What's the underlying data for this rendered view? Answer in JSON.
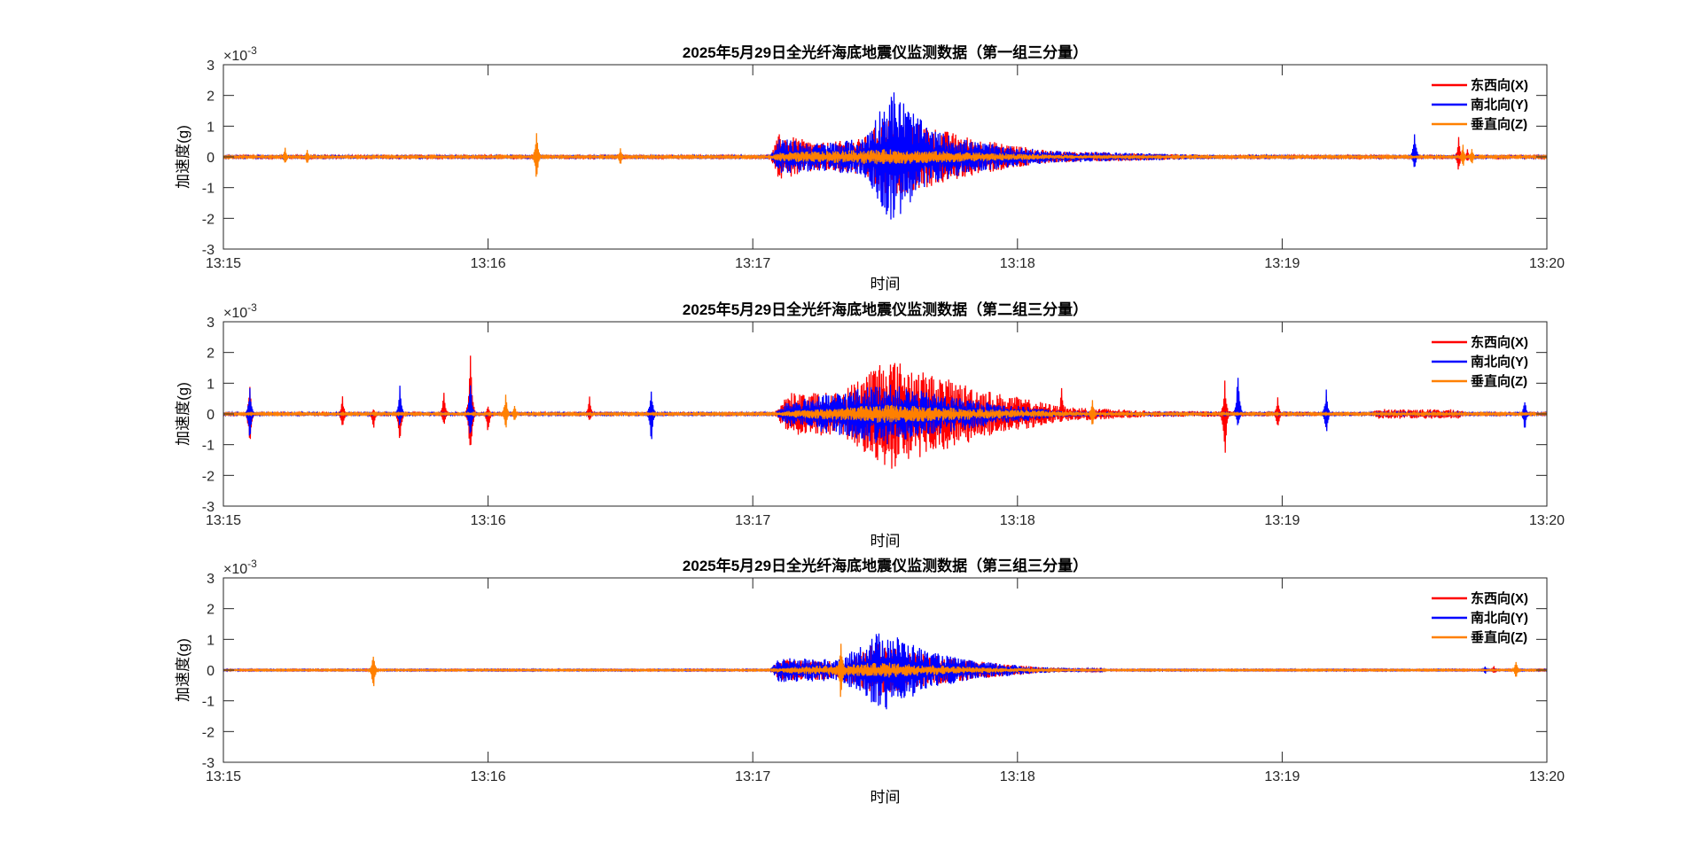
{
  "chart_data": [
    {
      "type": "line",
      "title": "2025年5月29日全光纤海底地震仪监测数据（第一组三分量）",
      "xlabel": "时间",
      "ylabel": "加速度(g)",
      "y_exponent": "-3",
      "y_exponent_base": "×10",
      "xlim": [
        "13:15:00",
        "13:20:00"
      ],
      "ylim": [
        -3,
        3
      ],
      "x_ticks": [
        "13:15",
        "13:16",
        "13:17",
        "13:18",
        "13:19",
        "13:20"
      ],
      "y_ticks": [
        "-3",
        "-2",
        "-1",
        "0",
        "1",
        "2",
        "3"
      ],
      "legend_position": "top-right",
      "grid": false,
      "series": [
        {
          "name": "东西向(X)",
          "color": "#ff0000",
          "noise": 0.04,
          "envelope": [
            [
              "13:17:04",
              0.05
            ],
            [
              "13:17:06",
              0.75
            ],
            [
              "13:17:15",
              0.45
            ],
            [
              "13:17:25",
              0.6
            ],
            [
              "13:17:30",
              1.3
            ],
            [
              "13:17:40",
              1.0
            ],
            [
              "13:17:50",
              0.6
            ],
            [
              "13:18:07",
              0.2
            ],
            [
              "13:18:40",
              0.07
            ],
            [
              "13:18:50",
              0.04
            ]
          ],
          "spikes": [
            [
              "13:15:19",
              0.1,
              -0.25
            ],
            [
              "13:19:40",
              0.65,
              -0.55
            ],
            [
              "13:19:42",
              0.25,
              -0.2
            ]
          ]
        },
        {
          "name": "南北向(Y)",
          "color": "#0000ff",
          "noise": 0.05,
          "envelope": [
            [
              "13:17:04",
              0.05
            ],
            [
              "13:17:06",
              0.6
            ],
            [
              "13:17:15",
              0.45
            ],
            [
              "13:17:25",
              0.6
            ],
            [
              "13:17:30",
              1.9
            ],
            [
              "13:17:32",
              2.2
            ],
            [
              "13:17:40",
              0.9
            ],
            [
              "13:17:50",
              0.5
            ],
            [
              "13:18:07",
              0.2
            ],
            [
              "13:18:40",
              0.08
            ],
            [
              "13:18:50",
              0.05
            ]
          ],
          "spikes": [
            [
              "13:19:30",
              0.95,
              -0.45
            ]
          ]
        },
        {
          "name": "垂直向(Z)",
          "color": "#ff8000",
          "noise": 0.03,
          "envelope": [
            [
              "13:17:04",
              0.03
            ],
            [
              "13:17:06",
              0.15
            ],
            [
              "13:17:30",
              0.25
            ],
            [
              "13:17:50",
              0.15
            ],
            [
              "13:18:10",
              0.06
            ],
            [
              "13:18:30",
              0.03
            ]
          ],
          "spikes": [
            [
              "13:15:14",
              0.3,
              -0.3
            ],
            [
              "13:15:19",
              0.25,
              -0.3
            ],
            [
              "13:16:11",
              0.9,
              -0.9
            ],
            [
              "13:16:30",
              0.3,
              -0.3
            ],
            [
              "13:19:41",
              0.4,
              -0.4
            ],
            [
              "13:19:43",
              0.3,
              -0.3
            ]
          ]
        }
      ]
    },
    {
      "type": "line",
      "title": "2025年5月29日全光纤海底地震仪监测数据（第二组三分量）",
      "xlabel": "时间",
      "ylabel": "加速度(g)",
      "y_exponent": "-3",
      "y_exponent_base": "×10",
      "xlim": [
        "13:15:00",
        "13:20:00"
      ],
      "ylim": [
        -3,
        3
      ],
      "x_ticks": [
        "13:15",
        "13:16",
        "13:17",
        "13:18",
        "13:19",
        "13:20"
      ],
      "y_ticks": [
        "-3",
        "-2",
        "-1",
        "0",
        "1",
        "2",
        "3"
      ],
      "legend_position": "top-right",
      "grid": false,
      "series": [
        {
          "name": "东西向(X)",
          "color": "#ff0000",
          "noise": 0.05,
          "envelope": [
            [
              "13:17:05",
              0.06
            ],
            [
              "13:17:08",
              0.7
            ],
            [
              "13:17:20",
              0.7
            ],
            [
              "13:17:30",
              1.9
            ],
            [
              "13:17:40",
              1.3
            ],
            [
              "13:17:55",
              0.7
            ],
            [
              "13:18:10",
              0.25
            ],
            [
              "13:18:30",
              0.1
            ],
            [
              "13:19:20",
              0.06
            ],
            [
              "13:19:22",
              0.16
            ],
            [
              "13:19:40",
              0.15
            ],
            [
              "13:19:42",
              0.05
            ]
          ],
          "spikes": [
            [
              "13:15:06",
              1.0,
              -1.3
            ],
            [
              "13:15:27",
              0.6,
              -0.6
            ],
            [
              "13:15:34",
              0.2,
              -0.6
            ],
            [
              "13:15:40",
              0.4,
              -1.2
            ],
            [
              "13:15:50",
              0.8,
              -0.5
            ],
            [
              "13:15:56",
              2.4,
              -1.9
            ],
            [
              "13:16:00",
              0.3,
              -0.7
            ],
            [
              "13:16:23",
              0.6,
              -0.3
            ],
            [
              "13:17:10",
              0.5,
              -0.3
            ],
            [
              "13:18:10",
              1.0,
              -0.4
            ],
            [
              "13:18:47",
              1.1,
              -1.7
            ],
            [
              "13:18:59",
              0.6,
              -0.6
            ],
            [
              "13:19:10",
              0.6,
              -0.6
            ]
          ]
        },
        {
          "name": "南北向(Y)",
          "color": "#0000ff",
          "noise": 0.04,
          "envelope": [
            [
              "13:17:05",
              0.04
            ],
            [
              "13:17:08",
              0.4
            ],
            [
              "13:17:30",
              1.0
            ],
            [
              "13:17:40",
              0.7
            ],
            [
              "13:17:55",
              0.35
            ],
            [
              "13:18:10",
              0.1
            ],
            [
              "13:18:30",
              0.05
            ]
          ],
          "spikes": [
            [
              "13:15:06",
              1.0,
              -1.0
            ],
            [
              "13:15:40",
              1.0,
              -0.5
            ],
            [
              "13:15:56",
              1.2,
              -1.0
            ],
            [
              "13:16:37",
              1.0,
              -1.1
            ],
            [
              "13:18:50",
              1.6,
              -0.5
            ],
            [
              "13:19:10",
              0.8,
              -0.8
            ],
            [
              "13:19:55",
              0.5,
              -0.6
            ]
          ]
        },
        {
          "name": "垂直向(Z)",
          "color": "#ff8000",
          "noise": 0.03,
          "envelope": [
            [
              "13:17:05",
              0.03
            ],
            [
              "13:17:08",
              0.1
            ],
            [
              "13:17:30",
              0.3
            ],
            [
              "13:17:55",
              0.15
            ],
            [
              "13:18:20",
              0.05
            ]
          ],
          "spikes": [
            [
              "13:16:04",
              0.7,
              -0.6
            ],
            [
              "13:16:06",
              0.3,
              -0.3
            ],
            [
              "13:18:17",
              0.5,
              -0.5
            ]
          ]
        }
      ]
    },
    {
      "type": "line",
      "title": "2025年5月29日全光纤海底地震仪监测数据（第三组三分量）",
      "xlabel": "时间",
      "ylabel": "加速度(g)",
      "y_exponent": "-3",
      "y_exponent_base": "×10",
      "xlim": [
        "13:15:00",
        "13:20:00"
      ],
      "ylim": [
        -3,
        3
      ],
      "x_ticks": [
        "13:15",
        "13:16",
        "13:17",
        "13:18",
        "13:19",
        "13:20"
      ],
      "y_ticks": [
        "-3",
        "-2",
        "-1",
        "0",
        "1",
        "2",
        "3"
      ],
      "legend_position": "top-right",
      "grid": false,
      "series": [
        {
          "name": "东西向(X)",
          "color": "#ff0000",
          "noise": 0.02,
          "envelope": [
            [
              "13:17:04",
              0.03
            ],
            [
              "13:17:06",
              0.35
            ],
            [
              "13:17:20",
              0.3
            ],
            [
              "13:17:28",
              0.9
            ],
            [
              "13:17:35",
              0.6
            ],
            [
              "13:17:50",
              0.3
            ],
            [
              "13:18:05",
              0.1
            ],
            [
              "13:18:20",
              0.03
            ]
          ],
          "spikes": [
            [
              "13:19:48",
              0.15,
              -0.15
            ]
          ]
        },
        {
          "name": "南北向(Y)",
          "color": "#0000ff",
          "noise": 0.02,
          "envelope": [
            [
              "13:17:04",
              0.03
            ],
            [
              "13:17:06",
              0.4
            ],
            [
              "13:17:20",
              0.35
            ],
            [
              "13:17:28",
              1.2
            ],
            [
              "13:17:30",
              1.3
            ],
            [
              "13:17:40",
              0.6
            ],
            [
              "13:17:50",
              0.3
            ],
            [
              "13:18:05",
              0.1
            ],
            [
              "13:18:20",
              0.03
            ]
          ],
          "spikes": [
            [
              "13:15:34",
              0.1,
              -0.1
            ],
            [
              "13:19:46",
              0.15,
              -0.15
            ]
          ]
        },
        {
          "name": "垂直向(Z)",
          "color": "#ff8000",
          "noise": 0.02,
          "envelope": [
            [
              "13:17:04",
              0.02
            ],
            [
              "13:17:08",
              0.1
            ],
            [
              "13:17:30",
              0.25
            ],
            [
              "13:17:50",
              0.1
            ],
            [
              "13:18:10",
              0.03
            ]
          ],
          "spikes": [
            [
              "13:15:34",
              0.6,
              -0.7
            ],
            [
              "13:17:20",
              1.1,
              -1.2
            ],
            [
              "13:19:53",
              0.3,
              -0.3
            ]
          ]
        }
      ]
    }
  ]
}
